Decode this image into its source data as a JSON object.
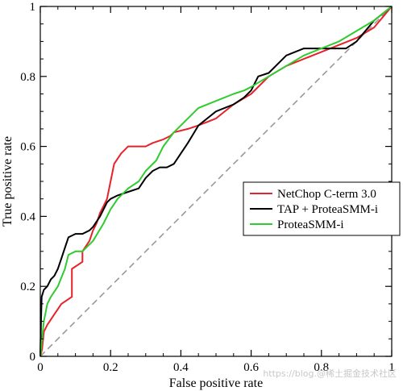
{
  "chart_data": {
    "type": "line",
    "xlabel": "False positive rate",
    "ylabel": "True positive rate",
    "xlim": [
      0,
      1
    ],
    "ylim": [
      0,
      1
    ],
    "x_ticks": [
      "0",
      "0.2",
      "0.4",
      "0.6",
      "0.8",
      "1"
    ],
    "y_ticks": [
      "0",
      "0.2",
      "0.4",
      "0.6",
      "0.8",
      "1"
    ],
    "grid": false,
    "legend_position": "right",
    "diagonal": {
      "color": "#999999",
      "style": "dashed"
    },
    "series": [
      {
        "name": "NetChop C-term 3.0",
        "color": "#e8222a",
        "x": [
          0,
          0.005,
          0.01,
          0.02,
          0.04,
          0.06,
          0.09,
          0.09,
          0.12,
          0.12,
          0.14,
          0.15,
          0.16,
          0.17,
          0.18,
          0.19,
          0.2,
          0.21,
          0.23,
          0.25,
          0.3,
          0.32,
          0.35,
          0.37,
          0.38,
          0.42,
          0.45,
          0.5,
          0.55,
          0.6,
          0.65,
          0.7,
          0.8,
          0.9,
          0.95,
          1.0
        ],
        "y": [
          0,
          0.02,
          0.07,
          0.09,
          0.12,
          0.15,
          0.17,
          0.25,
          0.27,
          0.3,
          0.33,
          0.36,
          0.38,
          0.41,
          0.43,
          0.45,
          0.5,
          0.55,
          0.58,
          0.6,
          0.6,
          0.61,
          0.62,
          0.63,
          0.64,
          0.65,
          0.66,
          0.68,
          0.72,
          0.75,
          0.8,
          0.83,
          0.87,
          0.91,
          0.94,
          1.0
        ]
      },
      {
        "name": "TAP + ProteaSMM-i",
        "color": "#000000",
        "x": [
          0,
          0.002,
          0.004,
          0.01,
          0.02,
          0.03,
          0.04,
          0.05,
          0.06,
          0.07,
          0.08,
          0.1,
          0.12,
          0.14,
          0.15,
          0.17,
          0.19,
          0.2,
          0.22,
          0.25,
          0.28,
          0.3,
          0.32,
          0.34,
          0.36,
          0.38,
          0.4,
          0.42,
          0.45,
          0.5,
          0.55,
          0.58,
          0.6,
          0.62,
          0.65,
          0.7,
          0.75,
          0.8,
          0.85,
          0.87,
          0.9,
          0.95,
          1.0
        ],
        "y": [
          0,
          0.1,
          0.17,
          0.19,
          0.2,
          0.22,
          0.23,
          0.25,
          0.28,
          0.31,
          0.34,
          0.35,
          0.35,
          0.36,
          0.37,
          0.4,
          0.44,
          0.45,
          0.46,
          0.47,
          0.48,
          0.51,
          0.53,
          0.54,
          0.54,
          0.55,
          0.58,
          0.61,
          0.66,
          0.7,
          0.72,
          0.74,
          0.76,
          0.8,
          0.81,
          0.86,
          0.88,
          0.88,
          0.88,
          0.88,
          0.9,
          0.96,
          1.0
        ]
      },
      {
        "name": "ProteaSMM-i",
        "color": "#2ecc2e",
        "x": [
          0,
          0.01,
          0.02,
          0.03,
          0.05,
          0.07,
          0.08,
          0.1,
          0.12,
          0.15,
          0.18,
          0.2,
          0.22,
          0.25,
          0.28,
          0.3,
          0.33,
          0.35,
          0.38,
          0.4,
          0.42,
          0.45,
          0.5,
          0.55,
          0.58,
          0.6,
          0.65,
          0.7,
          0.75,
          0.8,
          0.85,
          0.9,
          0.95,
          1.0
        ],
        "y": [
          0,
          0.1,
          0.15,
          0.17,
          0.2,
          0.25,
          0.29,
          0.3,
          0.3,
          0.33,
          0.38,
          0.42,
          0.45,
          0.48,
          0.5,
          0.53,
          0.56,
          0.6,
          0.64,
          0.66,
          0.68,
          0.71,
          0.73,
          0.75,
          0.76,
          0.77,
          0.8,
          0.83,
          0.86,
          0.88,
          0.9,
          0.93,
          0.96,
          1.0
        ]
      }
    ]
  },
  "watermark": "https://blog.@稀土掘金技术社区"
}
